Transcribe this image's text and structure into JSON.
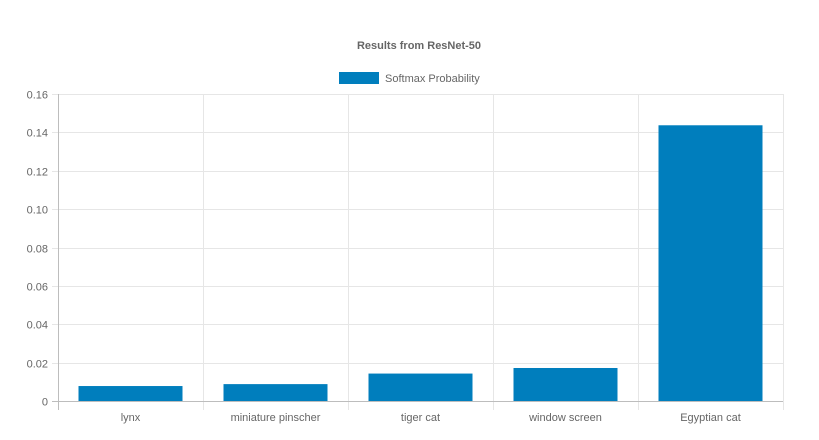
{
  "chart_data": {
    "type": "bar",
    "title": "Results from ResNet-50",
    "categories": [
      "lynx",
      "miniature pinscher",
      "tiger cat",
      "window screen",
      "Egyptian cat"
    ],
    "series": [
      {
        "name": "Softmax Probability",
        "values": [
          0.0078,
          0.0088,
          0.0143,
          0.0172,
          0.1437
        ],
        "color": "#007ebd"
      }
    ],
    "ylim": [
      0,
      0.16
    ],
    "yticks": [
      "0",
      "0.02",
      "0.04",
      "0.06",
      "0.08",
      "0.10",
      "0.12",
      "0.14",
      "0.16"
    ],
    "xlabel": "",
    "ylabel": "",
    "grid": true,
    "legend_position": "top-center"
  }
}
